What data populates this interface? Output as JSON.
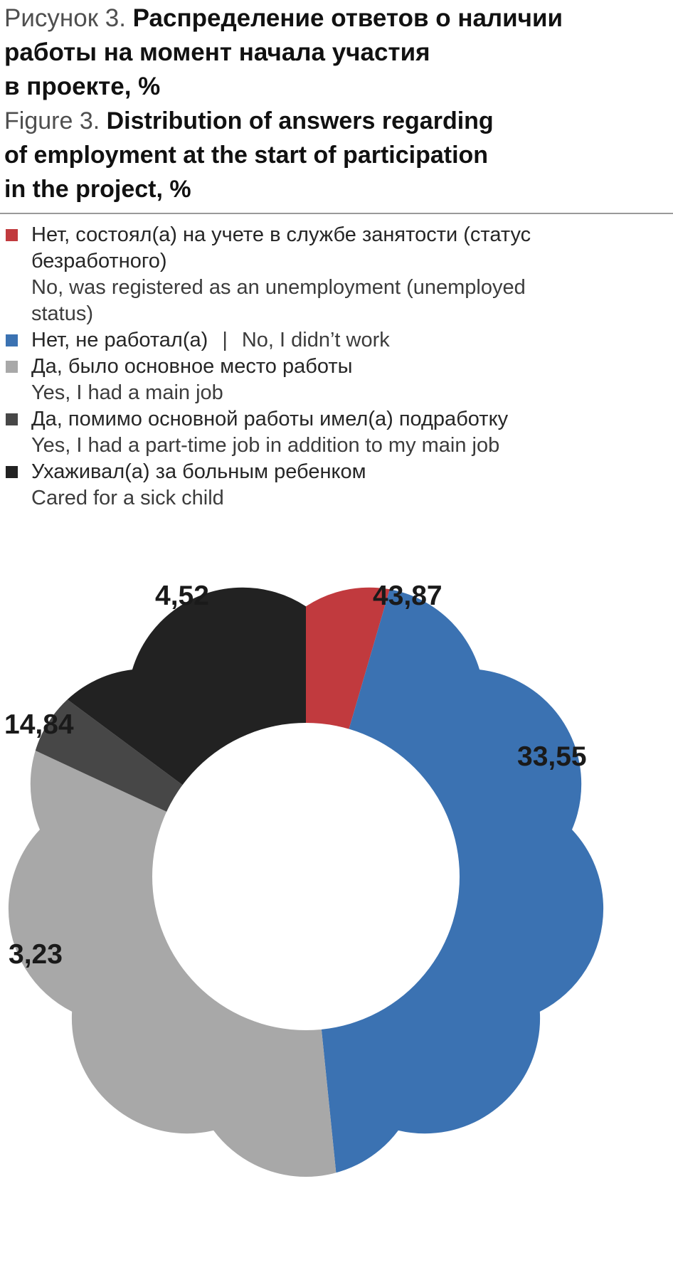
{
  "heading_ru": {
    "prefix": "Рисунок 3. ",
    "lines": [
      "Распределение ответов о наличии",
      "работы на момент начала участия",
      "в проекте, %"
    ]
  },
  "heading_en": {
    "prefix": "Figure 3. ",
    "lines": [
      "Distribution of answers regarding",
      "of employment at the start of participation",
      "in the project, %"
    ]
  },
  "legend": [
    {
      "color": "#c13a3e",
      "ru_lines": [
        "Нет, состоял(а) на учете в службе занятости (статус",
        "безработного)"
      ],
      "en_lines": [
        "No, was registered as an unemployment (unemployed",
        "status)"
      ]
    },
    {
      "color": "#3b72b2",
      "ru": "Нет, не работал(а)",
      "separator": "|",
      "en": "No, I didn’t work"
    },
    {
      "color": "#a8a8a8",
      "ru_lines": [
        "Да, было основное место работы"
      ],
      "en_lines": [
        "Yes, I had a main job"
      ]
    },
    {
      "color": "#474747",
      "ru_lines": [
        "Да, помимо основной работы имел(а) подработку"
      ],
      "en_lines": [
        "Yes, I had a part-time job in addition to my main job"
      ]
    },
    {
      "color": "#222222",
      "ru_lines": [
        "Ухаживал(а) за больным ребенком"
      ],
      "en_lines": [
        "Cared for a sick child"
      ]
    }
  ],
  "chart_data": {
    "type": "pie",
    "variant": "flower-doughnut",
    "unit": "%",
    "direction": "clockwise",
    "start_angle_deg": 0,
    "series": [
      {
        "name_ru": "Нет, состоял(а) на учете в службе занятости (статус безработного)",
        "name_en": "No, was registered as an unemployment (unemployed status)",
        "value": 4.52,
        "display": "4,52",
        "color": "#c13a3e"
      },
      {
        "name_ru": "Нет, не работал(а)",
        "name_en": "No, I didn’t work",
        "value": 43.87,
        "display": "43,87",
        "color": "#3b72b2"
      },
      {
        "name_ru": "Да, было основное место работы",
        "name_en": "Yes, I had a main job",
        "value": 33.55,
        "display": "33,55",
        "color": "#a8a8a8"
      },
      {
        "name_ru": "Да, помимо основной работы имел(а) подработку",
        "name_en": "Yes, I had a part-time job in addition to my main job",
        "value": 3.23,
        "display": "3,23",
        "color": "#474747"
      },
      {
        "name_ru": "Ухаживал(а) за больным ребенком",
        "name_en": "Cared for a sick child",
        "value": 14.84,
        "display": "14,84",
        "color": "#222222"
      }
    ]
  }
}
